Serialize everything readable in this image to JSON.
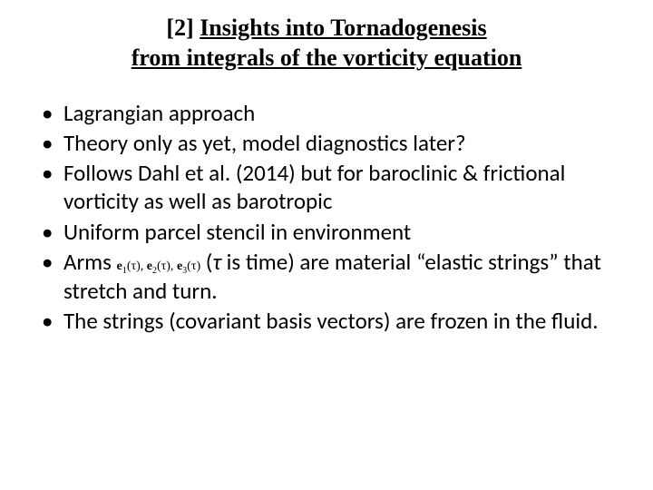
{
  "slide": {
    "background_color": "#ffffff",
    "text_color": "#000000",
    "title": {
      "prefix": "[2] ",
      "line1_underlined": "Insights into Tornadogenesis",
      "line2_underlined": "from integrals of the vorticity equation",
      "font_family": "Times New Roman",
      "font_weight": "bold",
      "font_size_pt": 20
    },
    "bullets": {
      "font_family": "Calibri",
      "font_size_pt": 19,
      "items": [
        {
          "text": "Lagrangian approach"
        },
        {
          "text": "Theory only as yet, model diagnostics later?"
        },
        {
          "text": "Follows Dahl et al. (2014) but for baroclinic & frictional vorticity as well as barotropic"
        },
        {
          "text": "Uniform parcel stencil in environment"
        },
        {
          "prefix": "Arms  ",
          "math_terms": [
            "e",
            "1",
            "(τ), ",
            "e",
            "2",
            "(τ), ",
            "e",
            "3",
            "(τ)"
          ],
          "between": " (",
          "tau": "τ",
          "suffix": " is time) are material “elastic strings” that stretch and turn."
        },
        {
          "text": "The strings (covariant basis vectors) are frozen in the fluid."
        }
      ]
    }
  }
}
